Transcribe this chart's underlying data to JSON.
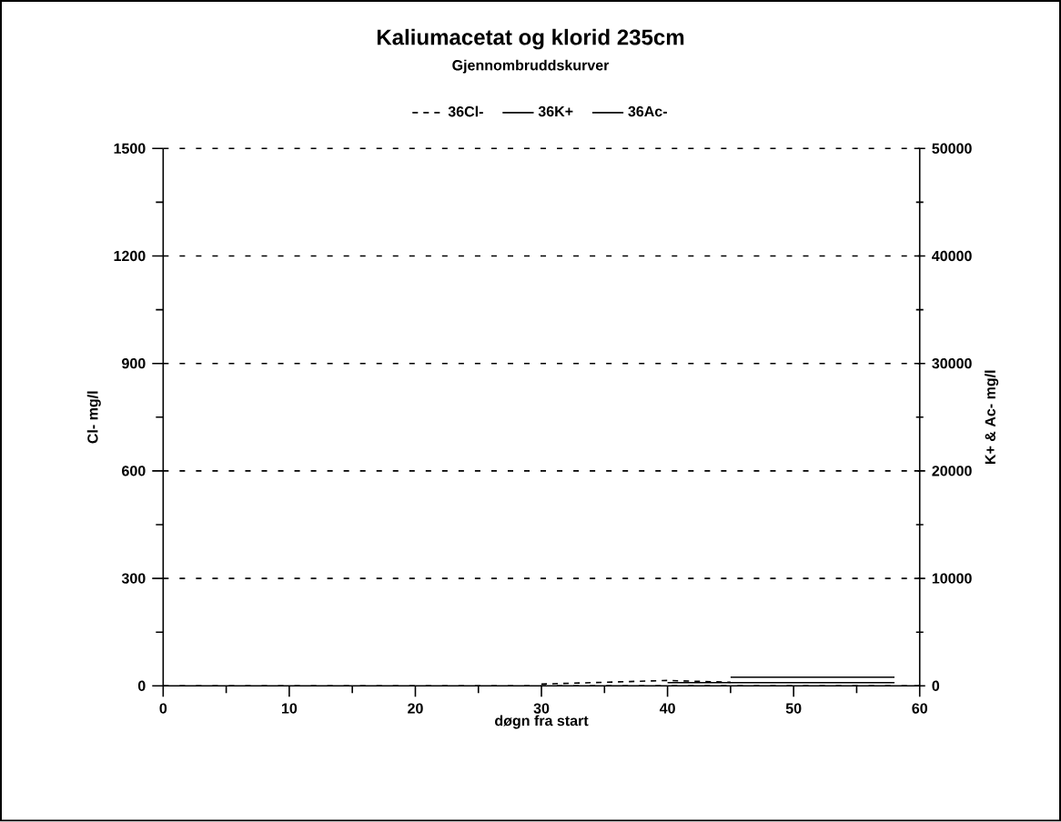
{
  "chart_data": {
    "type": "line",
    "title": "Kaliumacetat og klorid 235cm",
    "subtitle": "Gjennombruddskurver",
    "xlabel": "døgn fra start",
    "ylabel": "Cl- mg/l",
    "y2label": "K+ & Ac- mg/l",
    "xlim": [
      0,
      60
    ],
    "xticks": [
      0,
      10,
      20,
      30,
      40,
      50,
      60
    ],
    "ylim": [
      0,
      1500
    ],
    "yticks": [
      0,
      300,
      600,
      900,
      1200,
      1500
    ],
    "y2lim": [
      0,
      50000
    ],
    "y2ticks": [
      0,
      10000,
      20000,
      30000,
      40000,
      50000
    ],
    "grid": "y",
    "legend": "top",
    "series": [
      {
        "name": "36Cl-",
        "color": "#000000",
        "line_style": "dashed",
        "x": [
          30,
          35,
          40,
          45
        ],
        "values": [
          5,
          10,
          15,
          10
        ]
      },
      {
        "name": "36K+",
        "color": "#000000",
        "line_style": "solid",
        "axis": "y2",
        "x": [
          40,
          45,
          50,
          55,
          58
        ],
        "values": [
          300,
          300,
          300,
          300,
          300
        ]
      },
      {
        "name": "36Ac-",
        "color": "#000000",
        "line_style": "solid",
        "axis": "y2",
        "x": [
          45,
          50,
          55,
          58
        ],
        "values": [
          800,
          800,
          800,
          800
        ]
      }
    ]
  }
}
